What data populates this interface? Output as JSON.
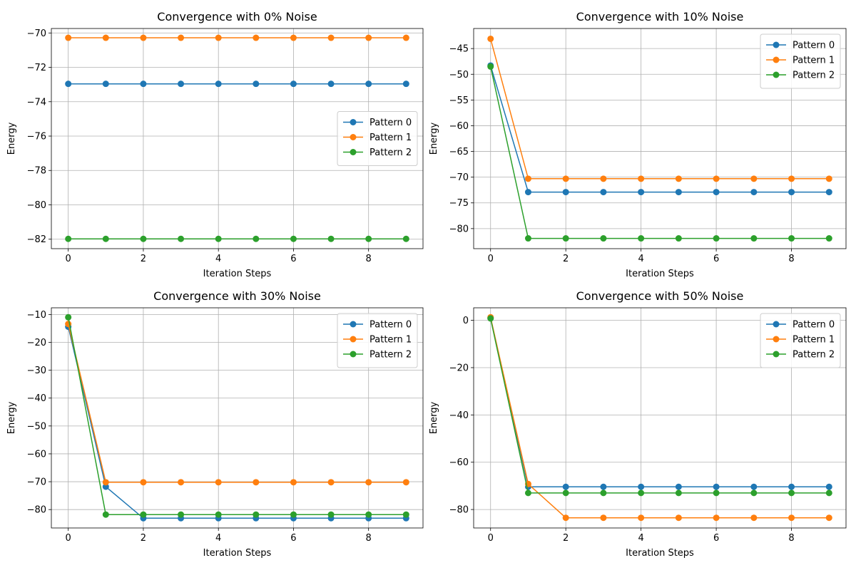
{
  "figure": {
    "background": "#ffffff",
    "colors": {
      "Pattern 0": "#1f77b4",
      "Pattern 1": "#ff7f0e",
      "Pattern 2": "#2ca02c"
    }
  },
  "chart_data": [
    {
      "type": "line",
      "title": "Convergence with 0% Noise",
      "xlabel": "Iteration Steps",
      "ylabel": "Energy",
      "x": [
        0,
        1,
        2,
        3,
        4,
        5,
        6,
        7,
        8,
        9
      ],
      "xlim": [
        -0.45,
        9.45
      ],
      "ylim": [
        -82.55,
        -69.74
      ],
      "xticks": [
        0,
        2,
        4,
        6,
        8
      ],
      "yticks": [
        -82,
        -80,
        -78,
        -76,
        -74,
        -72,
        -70
      ],
      "grid": true,
      "legend": "center right",
      "series": [
        {
          "name": "Pattern 0",
          "values": [
            -72.96,
            -72.96,
            -72.96,
            -72.96,
            -72.96,
            -72.96,
            -72.96,
            -72.96,
            -72.96,
            -72.96
          ]
        },
        {
          "name": "Pattern 1",
          "values": [
            -70.28,
            -70.28,
            -70.28,
            -70.28,
            -70.28,
            -70.28,
            -70.28,
            -70.28,
            -70.28,
            -70.28
          ]
        },
        {
          "name": "Pattern 2",
          "values": [
            -81.98,
            -81.98,
            -81.98,
            -81.98,
            -81.98,
            -81.98,
            -81.98,
            -81.98,
            -81.98,
            -81.98
          ]
        }
      ]
    },
    {
      "type": "line",
      "title": "Convergence with 10% Noise",
      "xlabel": "Iteration Steps",
      "ylabel": "Energy",
      "x": [
        0,
        1,
        2,
        3,
        4,
        5,
        6,
        7,
        8,
        9
      ],
      "xlim": [
        -0.45,
        9.45
      ],
      "ylim": [
        -83.9,
        -41.1
      ],
      "xticks": [
        0,
        2,
        4,
        6,
        8
      ],
      "yticks": [
        -80,
        -75,
        -70,
        -65,
        -60,
        -55,
        -50,
        -45
      ],
      "grid": true,
      "legend": "upper right",
      "series": [
        {
          "name": "Pattern 0",
          "values": [
            -48.3,
            -72.9,
            -72.9,
            -72.9,
            -72.9,
            -72.9,
            -72.9,
            -72.9,
            -72.9,
            -72.9
          ]
        },
        {
          "name": "Pattern 1",
          "values": [
            -43.1,
            -70.3,
            -70.3,
            -70.3,
            -70.3,
            -70.3,
            -70.3,
            -70.3,
            -70.3,
            -70.3
          ]
        },
        {
          "name": "Pattern 2",
          "values": [
            -48.5,
            -81.9,
            -81.9,
            -81.9,
            -81.9,
            -81.9,
            -81.9,
            -81.9,
            -81.9,
            -81.9
          ]
        }
      ]
    },
    {
      "type": "line",
      "title": "Convergence with 30% Noise",
      "xlabel": "Iteration Steps",
      "ylabel": "Energy",
      "x": [
        0,
        1,
        2,
        3,
        4,
        5,
        6,
        7,
        8,
        9
      ],
      "xlim": [
        -0.45,
        9.45
      ],
      "ylim": [
        -86.6,
        -7.6
      ],
      "xticks": [
        0,
        2,
        4,
        6,
        8
      ],
      "yticks": [
        -80,
        -70,
        -60,
        -50,
        -40,
        -30,
        -20,
        -10
      ],
      "grid": true,
      "legend": "upper right",
      "series": [
        {
          "name": "Pattern 0",
          "values": [
            -14.4,
            -71.8,
            -83.1,
            -83.1,
            -83.1,
            -83.1,
            -83.1,
            -83.1,
            -83.1,
            -83.1
          ]
        },
        {
          "name": "Pattern 1",
          "values": [
            -13.4,
            -70.2,
            -70.2,
            -70.2,
            -70.2,
            -70.2,
            -70.2,
            -70.2,
            -70.2,
            -70.2
          ]
        },
        {
          "name": "Pattern 2",
          "values": [
            -11.0,
            -81.8,
            -81.8,
            -81.8,
            -81.8,
            -81.8,
            -81.8,
            -81.8,
            -81.8,
            -81.8
          ]
        }
      ]
    },
    {
      "type": "line",
      "title": "Convergence with 50% Noise",
      "xlabel": "Iteration Steps",
      "ylabel": "Energy",
      "x": [
        0,
        1,
        2,
        3,
        4,
        5,
        6,
        7,
        8,
        9
      ],
      "xlim": [
        -0.45,
        9.45
      ],
      "ylim": [
        -87.8,
        5.3
      ],
      "xticks": [
        0,
        2,
        4,
        6,
        8
      ],
      "yticks": [
        -80,
        -60,
        -40,
        -20,
        0
      ],
      "grid": true,
      "legend": "upper right",
      "series": [
        {
          "name": "Pattern 0",
          "values": [
            1.0,
            -70.4,
            -70.4,
            -70.4,
            -70.4,
            -70.4,
            -70.4,
            -70.4,
            -70.4,
            -70.4
          ]
        },
        {
          "name": "Pattern 1",
          "values": [
            1.3,
            -69.2,
            -83.5,
            -83.5,
            -83.5,
            -83.5,
            -83.5,
            -83.5,
            -83.5,
            -83.5
          ]
        },
        {
          "name": "Pattern 2",
          "values": [
            0.8,
            -73.0,
            -73.0,
            -73.0,
            -73.0,
            -73.0,
            -73.0,
            -73.0,
            -73.0,
            -73.0
          ]
        }
      ]
    }
  ]
}
